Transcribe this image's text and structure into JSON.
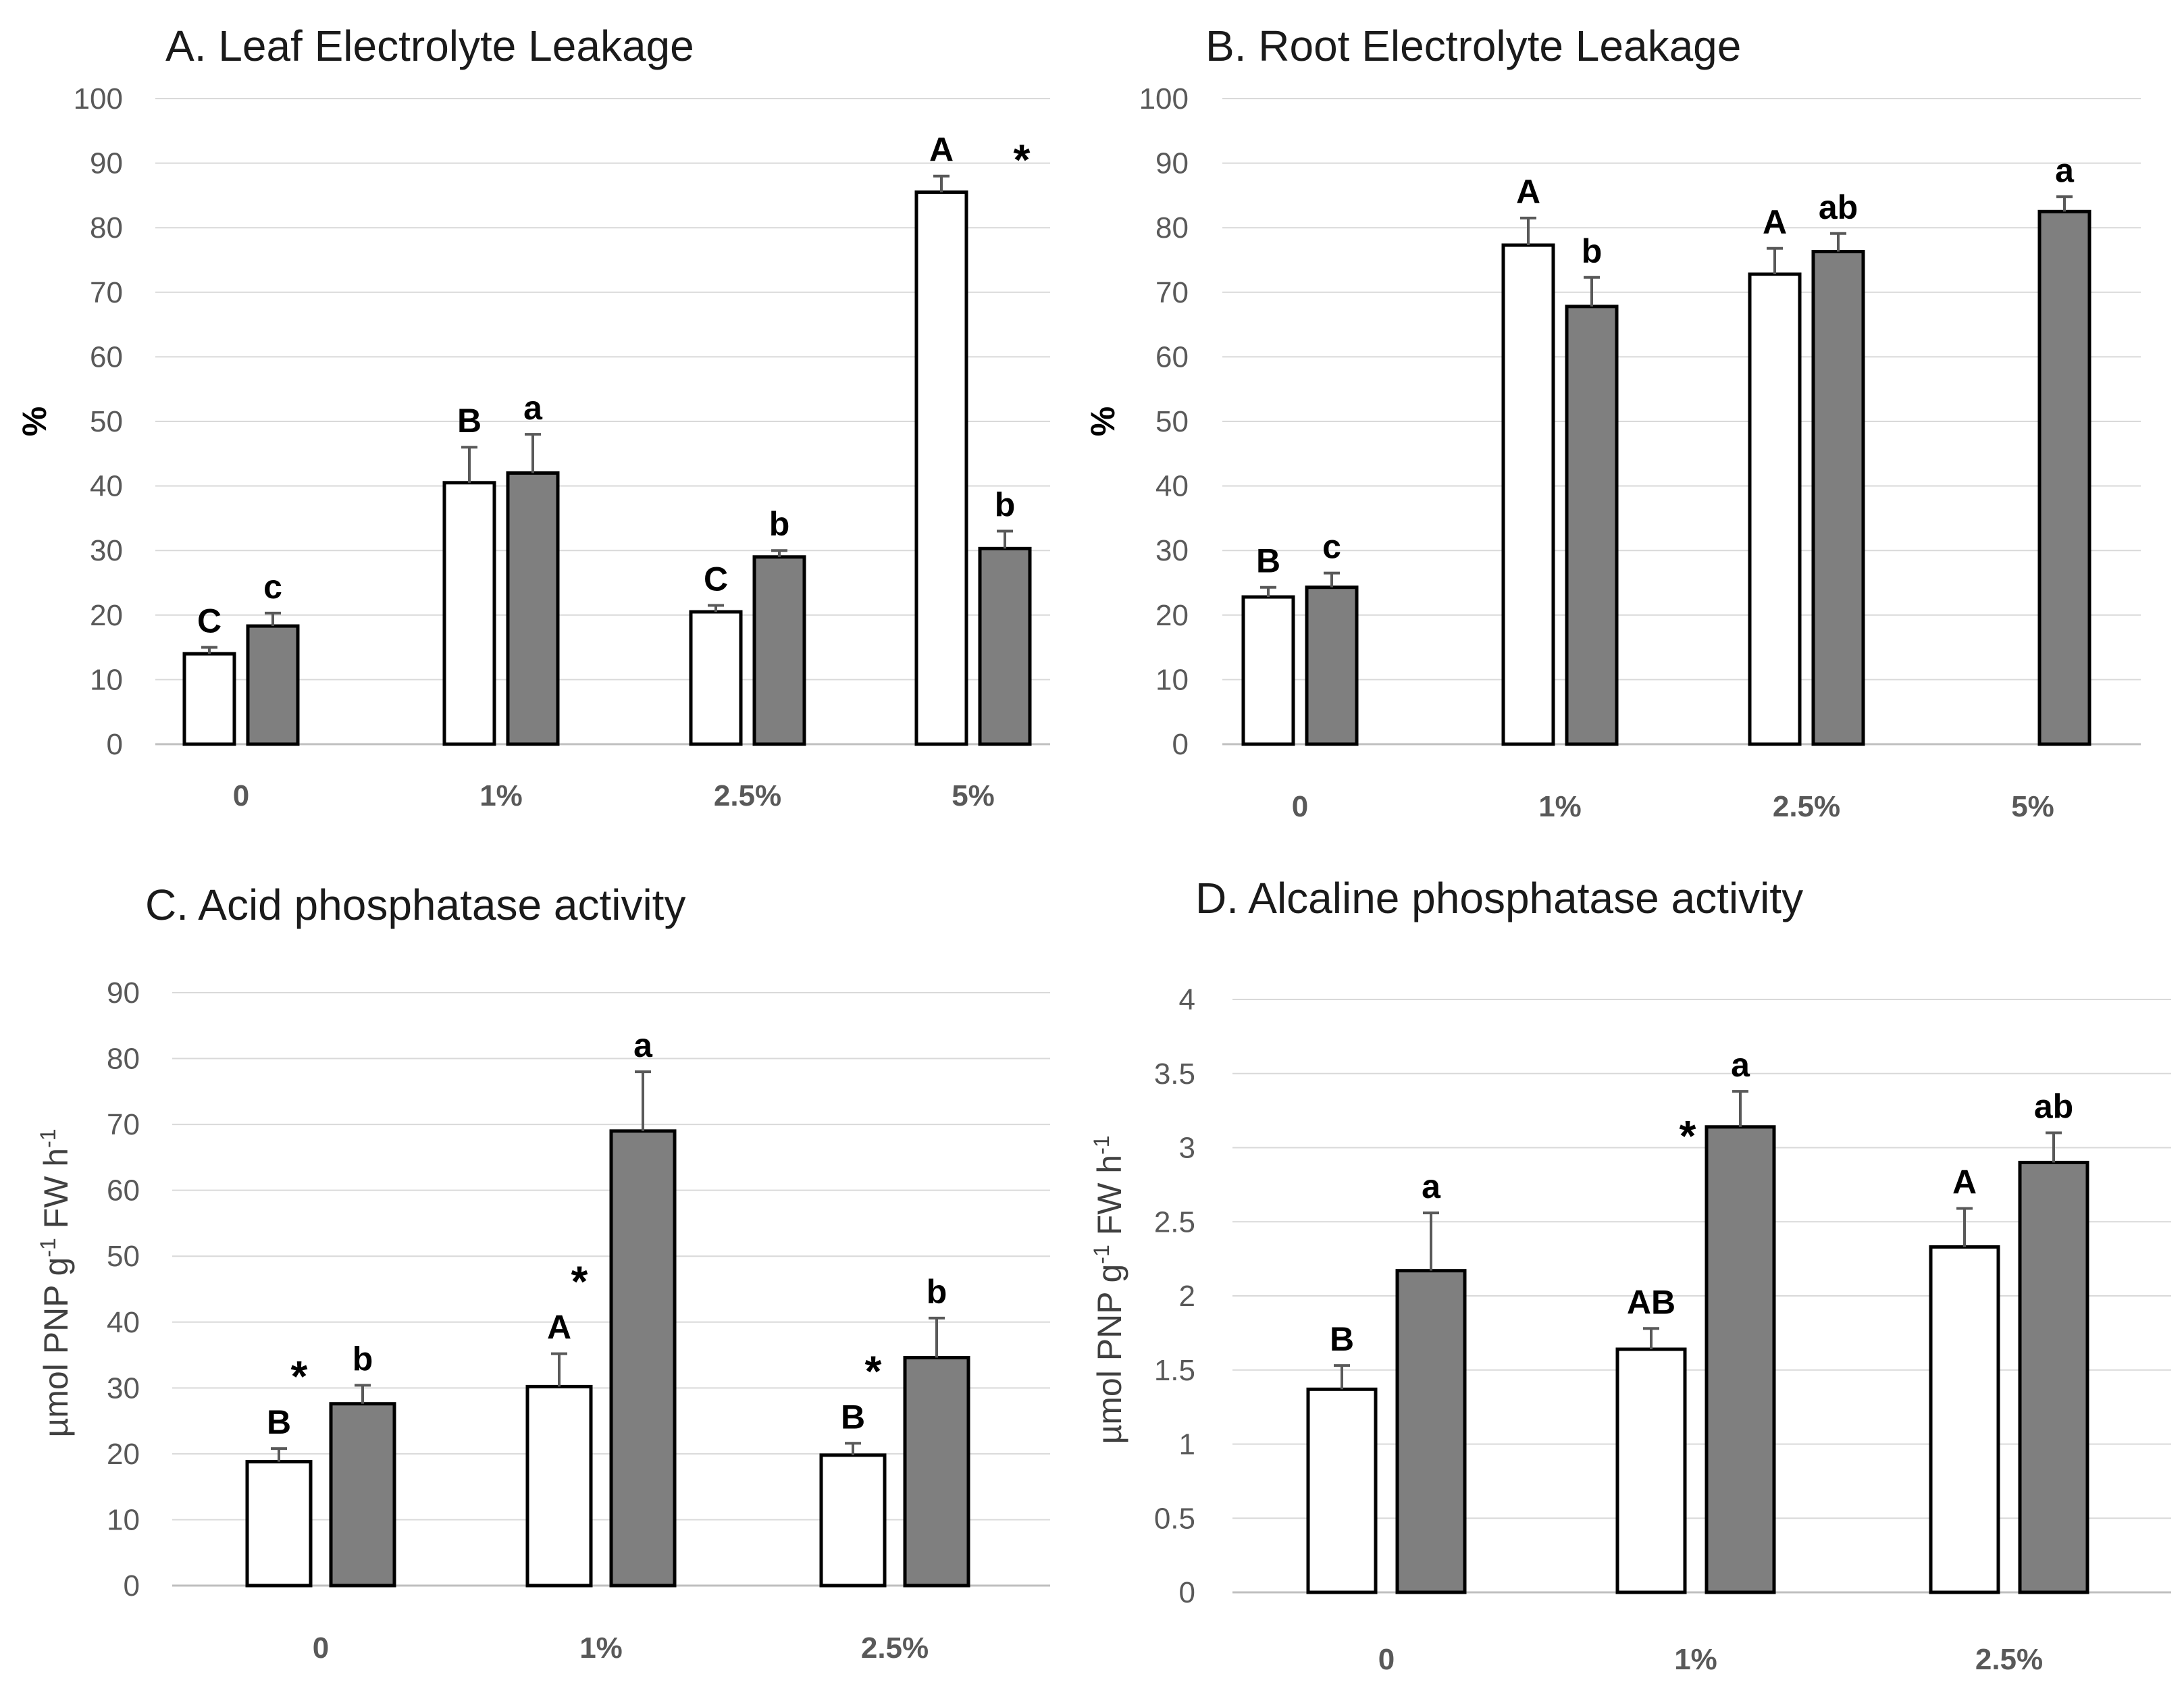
{
  "chart_data": [
    {
      "type": "bar",
      "title": "A. Leaf Electrolyte Leakage",
      "ylabel": "%",
      "xlabel": "",
      "ylim": [
        0,
        100
      ],
      "yticks": [
        0,
        10,
        20,
        30,
        40,
        50,
        60,
        70,
        80,
        90,
        100
      ],
      "categories": [
        "0",
        "1%",
        "2.5%",
        "5%"
      ],
      "series": [
        {
          "name": "white",
          "color": "#ffffff",
          "values": [
            14,
            40.5,
            20.5,
            85.5
          ],
          "errors": [
            1,
            5.5,
            1,
            2.5
          ],
          "labels": [
            "C",
            "B",
            "C",
            "A"
          ]
        },
        {
          "name": "grey",
          "color": "#7f7f7f",
          "values": [
            18.3,
            42,
            29,
            30.3
          ],
          "errors": [
            2,
            6,
            1,
            2.7
          ],
          "labels": [
            "c",
            "a",
            "b",
            "b"
          ]
        }
      ],
      "annotations": [
        {
          "text": "*",
          "category": 3
        }
      ]
    },
    {
      "type": "bar",
      "title": "B. Root Electrolyte Leakage",
      "ylabel": "%",
      "xlabel": "",
      "ylim": [
        0,
        100
      ],
      "yticks": [
        0,
        10,
        20,
        30,
        40,
        50,
        60,
        70,
        80,
        90,
        100
      ],
      "categories": [
        "0",
        "1%",
        "2.5%",
        "5%"
      ],
      "series": [
        {
          "name": "white",
          "color": "#ffffff",
          "values": [
            22.8,
            77.3,
            72.8,
            null
          ],
          "errors": [
            1.5,
            4.2,
            4,
            null
          ],
          "labels": [
            "B",
            "A",
            "A",
            ""
          ]
        },
        {
          "name": "grey",
          "color": "#7f7f7f",
          "values": [
            24.3,
            67.8,
            76.3,
            82.5
          ],
          "errors": [
            2.2,
            4.5,
            2.8,
            2.3
          ],
          "labels": [
            "c",
            "b",
            "ab",
            "a"
          ]
        }
      ],
      "annotations": []
    },
    {
      "type": "bar",
      "title": "C. Acid phosphatase activity",
      "ylabel": "µmol PNP g-1 FW h-1",
      "ylabel_parts": [
        "µmol PNP g",
        "-1",
        " FW h",
        "-1"
      ],
      "xlabel": "",
      "ylim": [
        0,
        90
      ],
      "yticks": [
        0,
        10,
        20,
        30,
        40,
        50,
        60,
        70,
        80,
        90
      ],
      "categories": [
        "0",
        "1%",
        "2.5%"
      ],
      "series": [
        {
          "name": "white",
          "color": "#ffffff",
          "values": [
            18.8,
            30.2,
            19.8
          ],
          "errors": [
            2,
            5,
            1.8
          ],
          "labels": [
            "B",
            "A",
            "B"
          ]
        },
        {
          "name": "grey",
          "color": "#7f7f7f",
          "values": [
            27.6,
            69,
            34.6
          ],
          "errors": [
            2.8,
            9,
            6
          ],
          "labels": [
            "b",
            "a",
            "b"
          ]
        }
      ],
      "annotations": [
        {
          "text": "*",
          "category": 0
        },
        {
          "text": "*",
          "category": 1
        },
        {
          "text": "*",
          "category": 2
        }
      ]
    },
    {
      "type": "bar",
      "title": "D. Alcaline phosphatase activity",
      "ylabel": "µmol PNP g-1 FW h-1",
      "ylabel_parts": [
        "µmol PNP g",
        "-1",
        " FW h",
        "-1"
      ],
      "xlabel": "",
      "ylim": [
        0,
        4
      ],
      "yticks": [
        0,
        0.5,
        1,
        1.5,
        2,
        2.5,
        3,
        3.5,
        4
      ],
      "categories": [
        "0",
        "1%",
        "2.5%"
      ],
      "series": [
        {
          "name": "white",
          "color": "#ffffff",
          "values": [
            1.37,
            1.64,
            2.33
          ],
          "errors": [
            0.16,
            0.14,
            0.26
          ],
          "labels": [
            "B",
            "AB",
            "A"
          ]
        },
        {
          "name": "grey",
          "color": "#7f7f7f",
          "values": [
            2.17,
            3.14,
            2.9
          ],
          "errors": [
            0.39,
            0.24,
            0.2
          ],
          "labels": [
            "a",
            "a",
            "ab"
          ]
        }
      ],
      "annotations": [
        {
          "text": "*",
          "category": 1
        }
      ]
    }
  ]
}
